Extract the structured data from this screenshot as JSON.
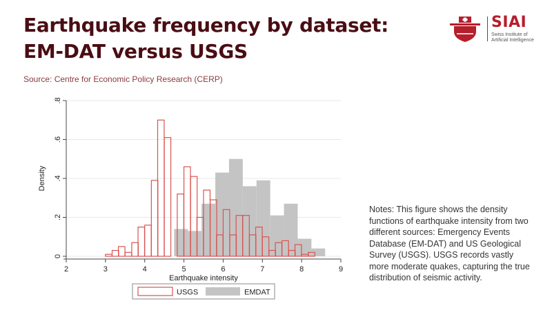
{
  "header": {
    "title": "Earthquake frequency by dataset: EM-DAT versus USGS",
    "source": "Source: Centre for Economic Policy Research (CERP)"
  },
  "logo": {
    "name": "SIAI",
    "subtitle_lines": [
      "Swiss Institute of",
      "Artificial Intelligence"
    ]
  },
  "notes": "Notes: This figure shows the density functions of earthquake intensity from two different sources: Emergency Events Database (EM-DAT) and US Geological Survey (USGS). USGS records vastly more moderate quakes, capturing the true distribution of seismic activity.",
  "colors": {
    "usgs_stroke": "#d9534f",
    "emdat_fill": "#c4c4c4",
    "title": "#4a0d14",
    "brand": "#b51e2b"
  },
  "chart_data": {
    "type": "histogram",
    "xlabel": "Earthquake intensity",
    "ylabel": "Density",
    "xlim": [
      2,
      9
    ],
    "ylim": [
      0,
      0.8
    ],
    "xticks": [
      2,
      3,
      4,
      5,
      6,
      7,
      8,
      9
    ],
    "yticks": [
      0,
      0.2,
      0.4,
      0.6,
      0.8
    ],
    "xtick_labels": [
      "2",
      "3",
      "4",
      "5",
      "6",
      "7",
      "8",
      "9"
    ],
    "ytick_labels": [
      "0",
      ".2",
      ".4",
      ".6",
      ".8"
    ],
    "grid": true,
    "legend": [
      "USGS",
      "EMDAT"
    ],
    "legend_position": "bottom",
    "series": [
      {
        "name": "EMDAT",
        "bin_width": 0.35,
        "bins": [
          [
            4.75,
            0.14
          ],
          [
            5.1,
            0.13
          ],
          [
            5.45,
            0.27
          ],
          [
            5.8,
            0.43
          ],
          [
            6.15,
            0.5
          ],
          [
            6.5,
            0.36
          ],
          [
            6.85,
            0.39
          ],
          [
            7.2,
            0.21
          ],
          [
            7.55,
            0.27
          ],
          [
            7.9,
            0.09
          ],
          [
            8.25,
            0.04
          ]
        ]
      },
      {
        "name": "USGS",
        "bin_width": 0.166,
        "bins": [
          [
            3.0,
            0.01
          ],
          [
            3.17,
            0.03
          ],
          [
            3.33,
            0.05
          ],
          [
            3.5,
            0.02
          ],
          [
            3.67,
            0.07
          ],
          [
            3.83,
            0.15
          ],
          [
            4.0,
            0.16
          ],
          [
            4.17,
            0.39
          ],
          [
            4.33,
            0.7
          ],
          [
            4.5,
            0.61
          ],
          [
            4.67,
            0.0
          ],
          [
            4.83,
            0.32
          ],
          [
            5.0,
            0.46
          ],
          [
            5.17,
            0.41
          ],
          [
            5.33,
            0.2
          ],
          [
            5.5,
            0.34
          ],
          [
            5.67,
            0.29
          ],
          [
            5.83,
            0.11
          ],
          [
            6.0,
            0.24
          ],
          [
            6.17,
            0.11
          ],
          [
            6.33,
            0.21
          ],
          [
            6.5,
            0.21
          ],
          [
            6.67,
            0.11
          ],
          [
            6.83,
            0.15
          ],
          [
            7.0,
            0.1
          ],
          [
            7.17,
            0.03
          ],
          [
            7.33,
            0.07
          ],
          [
            7.5,
            0.08
          ],
          [
            7.67,
            0.03
          ],
          [
            7.83,
            0.06
          ],
          [
            8.0,
            0.01
          ],
          [
            8.17,
            0.02
          ]
        ]
      }
    ]
  }
}
